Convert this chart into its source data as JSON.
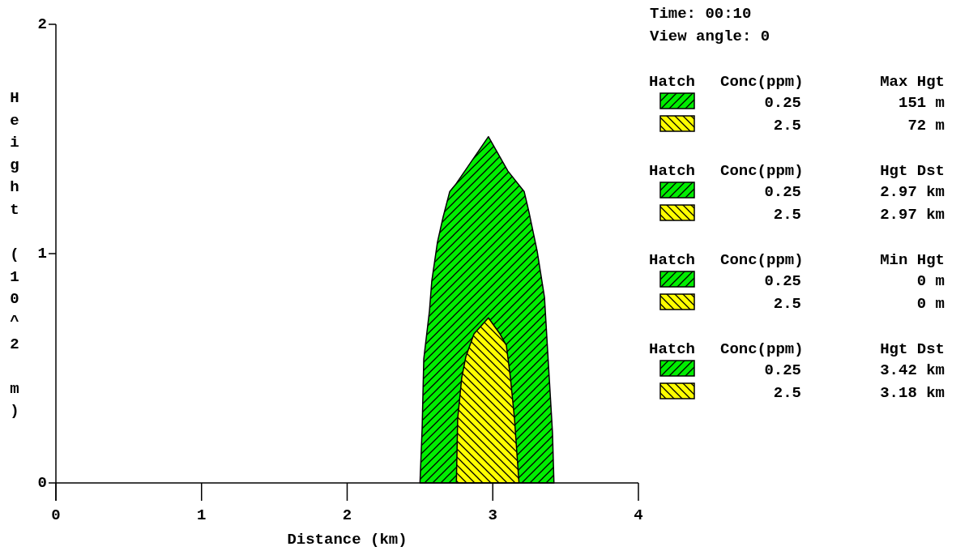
{
  "chart_data": {
    "type": "area",
    "xlabel": "Distance (km)",
    "ylabel": "Height (10^2 m)",
    "xlim": [
      0,
      4
    ],
    "ylim": [
      0,
      2
    ],
    "xticks": [
      0,
      1,
      2,
      3,
      4
    ],
    "yticks": [
      0,
      1,
      2
    ],
    "grid": false,
    "legend": "right",
    "series": [
      {
        "name": "0.25",
        "color": "#00ee00",
        "x": [
          2.5,
          2.515,
          2.526,
          2.565,
          2.581,
          2.62,
          2.659,
          2.704,
          2.743,
          2.97,
          3.104,
          3.216,
          3.249,
          3.305,
          3.355,
          3.382,
          3.41,
          3.42
        ],
        "values": [
          0,
          0.24,
          0.54,
          0.75,
          0.88,
          1.05,
          1.16,
          1.27,
          1.3,
          1.51,
          1.36,
          1.27,
          1.18,
          1.01,
          0.81,
          0.52,
          0.22,
          0
        ]
      },
      {
        "name": "2.5",
        "color": "#ffff00",
        "x": [
          2.75,
          2.759,
          2.787,
          2.815,
          2.871,
          2.97,
          3.049,
          3.093,
          3.121,
          3.149,
          3.18
        ],
        "values": [
          0,
          0.28,
          0.46,
          0.55,
          0.65,
          0.72,
          0.65,
          0.6,
          0.46,
          0.28,
          0
        ]
      }
    ],
    "annotations": [
      "Time: 00:10",
      "View angle: 0",
      "Hatch",
      "Conc(ppm)",
      "Max Hgt",
      "151 m",
      "72 m",
      "Hatch",
      "Conc(ppm)",
      "Hgt Dst",
      "2.97 km",
      "2.97 km",
      "Hatch",
      "Conc(ppm)",
      "Min Hgt",
      "0 m",
      "0 m",
      "Hatch",
      "Conc(ppm)",
      "Hgt Dst",
      "3.42 km",
      "3.18 km"
    ]
  }
}
